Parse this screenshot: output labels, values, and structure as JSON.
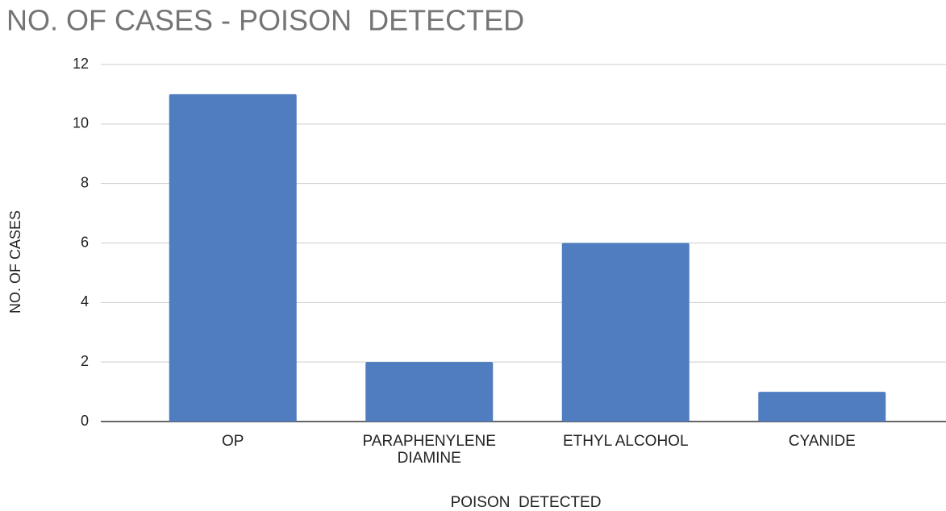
{
  "chart_data": {
    "type": "bar",
    "title": "NO. OF CASES - POISON  DETECTED",
    "x_label": "POISON  DETECTED",
    "y_label": "NO. OF CASES",
    "categories": [
      "OP",
      "PARAPHENYLENE DIAMINE",
      "ETHYL ALCOHOL",
      "CYANIDE"
    ],
    "values": [
      11,
      2,
      6,
      1
    ],
    "color": "#4f7dc0",
    "ylim": [
      0,
      12
    ],
    "yticks": [
      0,
      2,
      4,
      6,
      8,
      10,
      12
    ],
    "grid": true
  }
}
